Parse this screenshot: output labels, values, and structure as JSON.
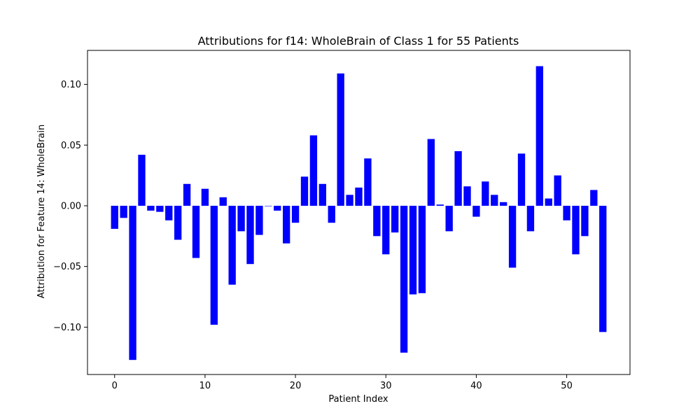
{
  "chart_data": {
    "type": "bar",
    "title": "Attributions for f14: WholeBrain of Class 1 for 55 Patients",
    "xlabel": "Patient Index",
    "ylabel": "Attribution for Feature 14: WholeBrain",
    "xlim": [
      -3,
      57
    ],
    "ylim": [
      -0.139,
      0.128
    ],
    "xticks": [
      0,
      10,
      20,
      30,
      40,
      50
    ],
    "xtick_labels": [
      "0",
      "10",
      "20",
      "30",
      "40",
      "50"
    ],
    "yticks": [
      -0.1,
      -0.05,
      0.0,
      0.05,
      0.1
    ],
    "ytick_labels": [
      "−0.10",
      "−0.05",
      "0.00",
      "0.05",
      "0.10"
    ],
    "grid": false,
    "bar_color": "#0000ff",
    "x": [
      0,
      1,
      2,
      3,
      4,
      5,
      6,
      7,
      8,
      9,
      10,
      11,
      12,
      13,
      14,
      15,
      16,
      17,
      18,
      19,
      20,
      21,
      22,
      23,
      24,
      25,
      26,
      27,
      28,
      29,
      30,
      31,
      32,
      33,
      34,
      35,
      36,
      37,
      38,
      39,
      40,
      41,
      42,
      43,
      44,
      45,
      46,
      47,
      48,
      49,
      50,
      51,
      52,
      53,
      54
    ],
    "values": [
      -0.019,
      -0.01,
      -0.127,
      0.042,
      -0.004,
      -0.005,
      -0.012,
      -0.028,
      0.018,
      -0.043,
      0.014,
      -0.098,
      0.007,
      -0.065,
      -0.021,
      -0.048,
      -0.024,
      0.0,
      -0.004,
      -0.031,
      -0.014,
      0.024,
      0.058,
      0.018,
      -0.014,
      0.109,
      0.009,
      0.015,
      0.039,
      -0.025,
      -0.04,
      -0.022,
      -0.121,
      -0.073,
      -0.072,
      0.055,
      0.001,
      -0.021,
      0.045,
      0.016,
      -0.009,
      0.02,
      0.009,
      0.003,
      -0.051,
      0.043,
      -0.021,
      0.115,
      0.006,
      0.025,
      -0.012,
      -0.04,
      -0.025,
      0.013,
      -0.104
    ]
  }
}
